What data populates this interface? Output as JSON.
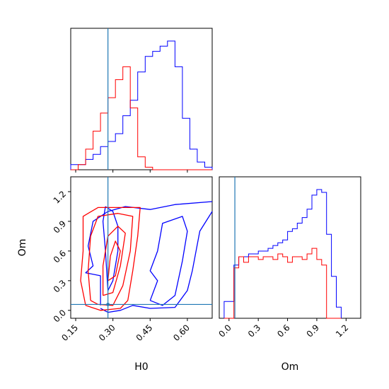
{
  "chart_data": {
    "type": "corner",
    "parameters": [
      "H0",
      "Om"
    ],
    "truth": {
      "H0": 0.28,
      "Om": 0.06
    },
    "colors": {
      "series_a": "#0000ff",
      "series_b": "#ff0000",
      "truth": "#1f77b4"
    },
    "panels": [
      {
        "id": "hist-H0",
        "type": "histogram",
        "x_range": [
          0.13,
          0.7
        ],
        "bin_edges": [
          0.13,
          0.16,
          0.19,
          0.22,
          0.25,
          0.28,
          0.31,
          0.34,
          0.37,
          0.4,
          0.43,
          0.46,
          0.49,
          0.52,
          0.55,
          0.58,
          0.61,
          0.64,
          0.67,
          0.7
        ],
        "series": [
          {
            "color": "blue",
            "counts": [
              2,
              2,
              4,
              6,
              9,
              11,
              14,
              21,
              27,
              38,
              44,
              46,
              48,
              50,
              40,
              20,
              8,
              3,
              1
            ]
          },
          {
            "color": "red",
            "counts": [
              0,
              2,
              8,
              15,
              22,
              28,
              35,
              40,
              24,
              5,
              1,
              0,
              0,
              0,
              0,
              0,
              0,
              0,
              0
            ]
          }
        ]
      },
      {
        "id": "hist-Om",
        "type": "histogram",
        "x_range": [
          -0.1,
          1.35
        ],
        "bin_edges": [
          -0.05,
          0.0,
          0.05,
          0.1,
          0.15,
          0.2,
          0.25,
          0.3,
          0.35,
          0.4,
          0.45,
          0.5,
          0.55,
          0.6,
          0.65,
          0.7,
          0.75,
          0.8,
          0.85,
          0.9,
          0.95,
          1.0,
          1.05,
          1.1,
          1.15
        ],
        "series": [
          {
            "color": "blue",
            "counts": [
              12,
              12,
              38,
              44,
              44,
              46,
              46,
              48,
              48,
              50,
              52,
              54,
              56,
              62,
              64,
              68,
              72,
              78,
              88,
              92,
              90,
              60,
              30,
              8
            ]
          },
          {
            "color": "red",
            "counts": [
              0,
              0,
              36,
              44,
              40,
              44,
              44,
              42,
              44,
              44,
              42,
              46,
              44,
              40,
              44,
              44,
              42,
              46,
              50,
              42,
              38,
              0,
              0,
              0
            ]
          }
        ]
      },
      {
        "id": "contour-H0-Om",
        "type": "contour",
        "x_range": [
          0.13,
          0.7
        ],
        "y_range": [
          -0.08,
          1.35
        ],
        "series": [
          {
            "color": "blue",
            "levels": [
              [
                [
                  0.25,
                  0.05
                ],
                [
                  0.25,
                  0.35
                ],
                [
                  0.19,
                  0.38
                ],
                [
                  0.22,
                  0.45
                ],
                [
                  0.2,
                  0.65
                ],
                [
                  0.22,
                  0.9
                ],
                [
                  0.28,
                  1.0
                ],
                [
                  0.35,
                  1.05
                ],
                [
                  0.45,
                  1.02
                ],
                [
                  0.55,
                  1.07
                ],
                [
                  0.7,
                  1.1
                ]
              ],
              [
                [
                  0.25,
                  0.02
                ],
                [
                  0.28,
                  -0.02
                ],
                [
                  0.33,
                  0.0
                ],
                [
                  0.38,
                  0.05
                ],
                [
                  0.45,
                  0.02
                ],
                [
                  0.55,
                  0.03
                ],
                [
                  0.6,
                  0.2
                ],
                [
                  0.62,
                  0.4
                ],
                [
                  0.65,
                  0.8
                ],
                [
                  0.7,
                  1.0
                ]
              ],
              [
                [
                  0.27,
                  1.05
                ],
                [
                  0.3,
                  1.0
                ],
                [
                  0.32,
                  0.85
                ],
                [
                  0.32,
                  0.6
                ],
                [
                  0.3,
                  0.3
                ],
                [
                  0.28,
                  0.2
                ],
                [
                  0.27,
                  0.6
                ],
                [
                  0.26,
                  0.9
                ],
                [
                  0.27,
                  1.05
                ]
              ],
              [
                [
                  0.45,
                  0.1
                ],
                [
                  0.5,
                  0.05
                ],
                [
                  0.55,
                  0.15
                ],
                [
                  0.58,
                  0.5
                ],
                [
                  0.6,
                  0.8
                ],
                [
                  0.58,
                  0.95
                ],
                [
                  0.5,
                  0.88
                ],
                [
                  0.48,
                  0.6
                ],
                [
                  0.45,
                  0.4
                ],
                [
                  0.48,
                  0.3
                ],
                [
                  0.45,
                  0.1
                ]
              ]
            ]
          },
          {
            "color": "red",
            "levels": [
              [
                [
                  0.19,
                  0.05
                ],
                [
                  0.17,
                  0.3
                ],
                [
                  0.18,
                  0.6
                ],
                [
                  0.18,
                  0.95
                ],
                [
                  0.24,
                  1.04
                ],
                [
                  0.35,
                  1.04
                ],
                [
                  0.41,
                  1.04
                ],
                [
                  0.4,
                  0.75
                ],
                [
                  0.38,
                  0.4
                ],
                [
                  0.36,
                  0.1
                ],
                [
                  0.33,
                  0.02
                ],
                [
                  0.25,
                  0.0
                ],
                [
                  0.19,
                  0.05
                ]
              ],
              [
                [
                  0.21,
                  0.1
                ],
                [
                  0.2,
                  0.4
                ],
                [
                  0.21,
                  0.75
                ],
                [
                  0.24,
                  0.95
                ],
                [
                  0.32,
                  0.98
                ],
                [
                  0.38,
                  0.95
                ],
                [
                  0.37,
                  0.6
                ],
                [
                  0.34,
                  0.25
                ],
                [
                  0.3,
                  0.05
                ],
                [
                  0.24,
                  0.06
                ],
                [
                  0.21,
                  0.1
                ]
              ],
              [
                [
                  0.26,
                  0.15
                ],
                [
                  0.26,
                  0.45
                ],
                [
                  0.28,
                  0.75
                ],
                [
                  0.32,
                  0.85
                ],
                [
                  0.35,
                  0.78
                ],
                [
                  0.33,
                  0.45
                ],
                [
                  0.3,
                  0.18
                ],
                [
                  0.26,
                  0.15
                ]
              ],
              [
                [
                  0.28,
                  0.3
                ],
                [
                  0.29,
                  0.55
                ],
                [
                  0.31,
                  0.7
                ],
                [
                  0.33,
                  0.6
                ],
                [
                  0.31,
                  0.35
                ],
                [
                  0.28,
                  0.3
                ]
              ]
            ]
          }
        ]
      }
    ],
    "axes": {
      "H0": {
        "label": "H0",
        "ticks": [
          0.15,
          0.3,
          0.45,
          0.6
        ],
        "tick_labels": [
          "0.15",
          "0.30",
          "0.45",
          "0.60"
        ]
      },
      "Om": {
        "label": "Om",
        "ticks": [
          0.0,
          0.3,
          0.6,
          0.9,
          1.2
        ],
        "tick_labels": [
          "0.0",
          "0.3",
          "0.6",
          "0.9",
          "1.2"
        ]
      }
    }
  }
}
